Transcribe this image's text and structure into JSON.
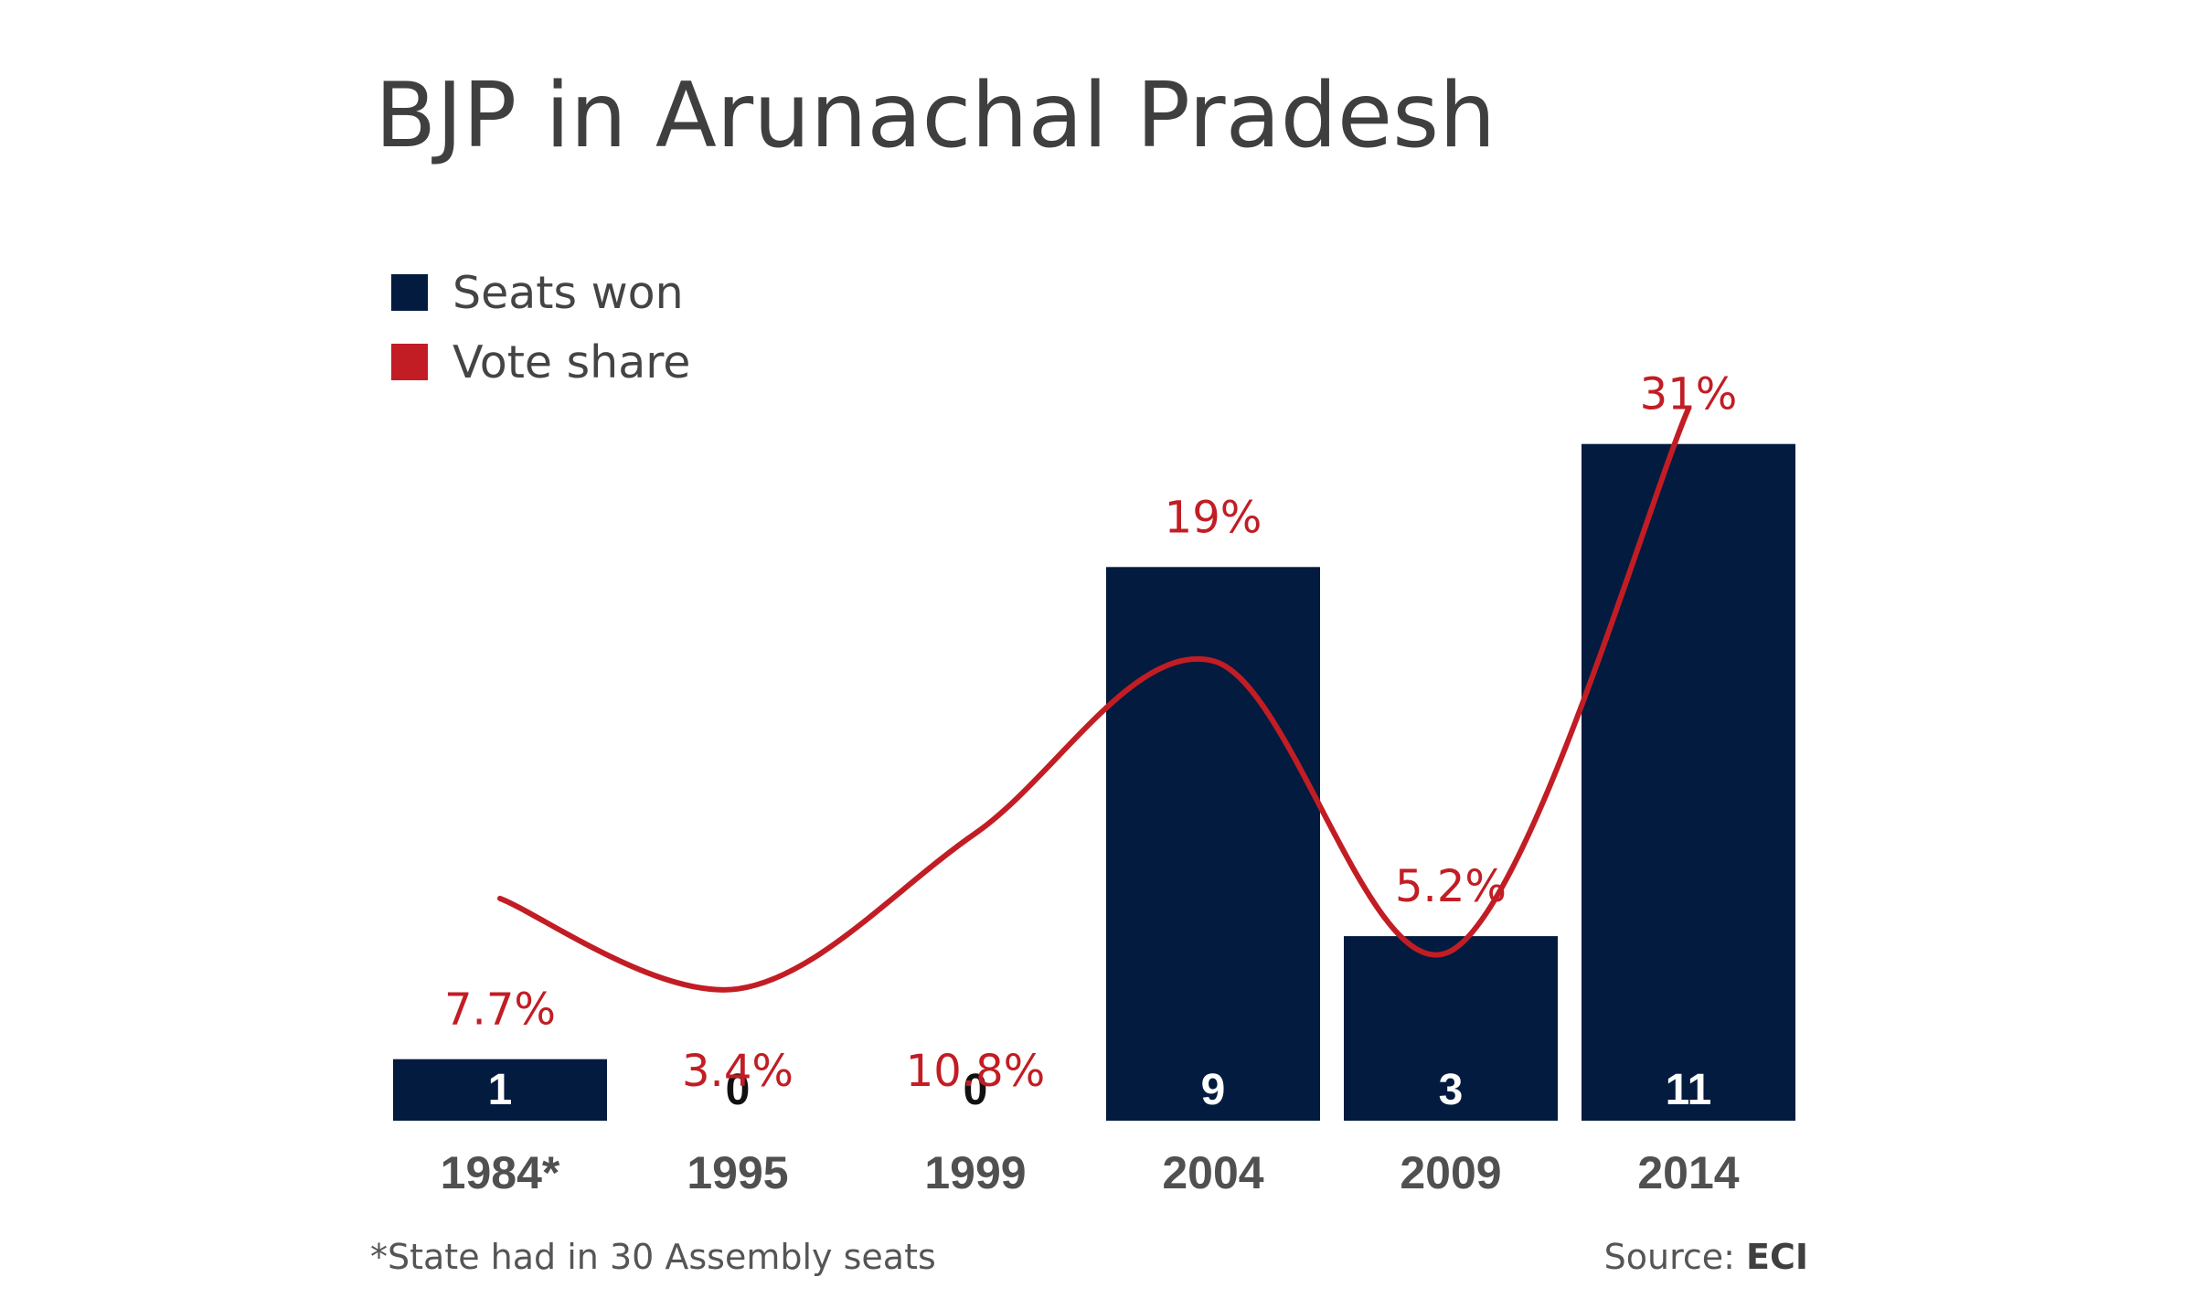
{
  "chart_data": {
    "type": "bar",
    "title": "BJP in Arunachal Pradesh",
    "categories": [
      "1984*",
      "1995",
      "1999",
      "2004",
      "2009",
      "2014"
    ],
    "series": [
      {
        "name": "Seats won",
        "type": "bar",
        "values": [
          1,
          0,
          0,
          9,
          3,
          11
        ],
        "color": "#021b3f"
      },
      {
        "name": "Vote share",
        "type": "line",
        "values": [
          7.7,
          3.4,
          10.8,
          19,
          5.2,
          31
        ],
        "labels": [
          "7.7%",
          "3.4%",
          "10.8%",
          "19%",
          "5.2%",
          "31%"
        ],
        "color": "#c21d24"
      }
    ],
    "legend_position": "top-left",
    "grid": false
  },
  "footnote": "*State had in 30 Assembly seats",
  "source": {
    "prefix": "Source: ",
    "name": "ECI"
  }
}
